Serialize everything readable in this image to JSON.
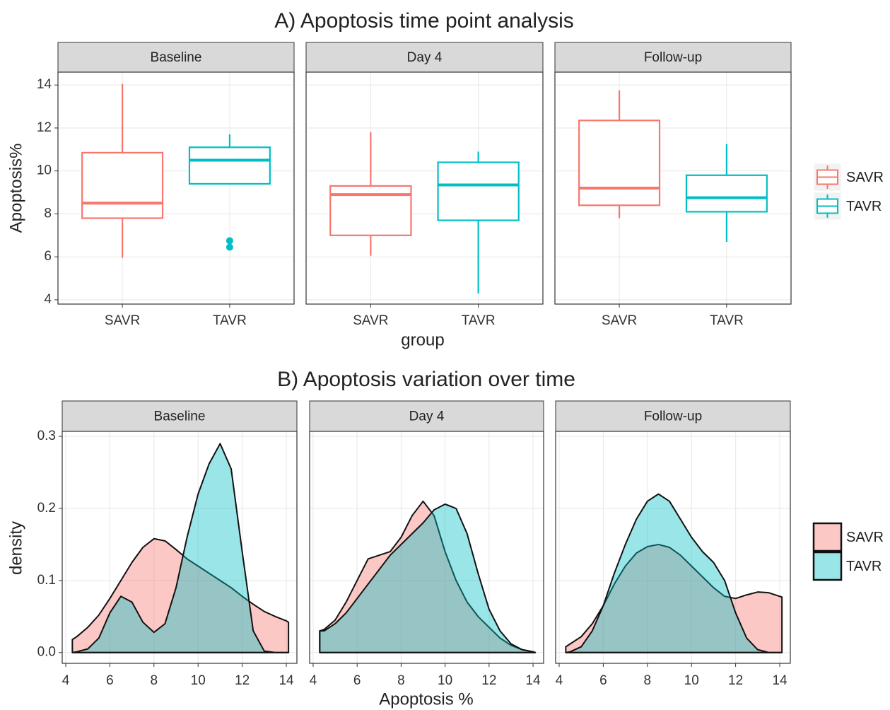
{
  "chart_data": [
    {
      "type": "box",
      "title": "A) Apoptosis time point analysis",
      "facets": [
        "Baseline",
        "Day 4",
        "Follow-up"
      ],
      "categories": [
        "SAVR",
        "TAVR"
      ],
      "x_label": "group",
      "y_label": "Apoptosis%",
      "ylim": [
        3.8,
        14.6
      ],
      "yticks": [
        4,
        6,
        8,
        10,
        12,
        14
      ],
      "grid": true,
      "legend": "right",
      "series": [
        {
          "name": "SAVR",
          "color": "#F8766D",
          "low": [
            5.95,
            6.05,
            7.8
          ],
          "q1": [
            7.8,
            7.0,
            8.4
          ],
          "median": [
            8.5,
            8.9,
            9.2
          ],
          "q3": [
            10.85,
            9.3,
            12.35
          ],
          "high": [
            14.05,
            11.8,
            13.75
          ]
        },
        {
          "name": "TAVR",
          "color": "#00BFC4",
          "low": [
            9.4,
            4.3,
            6.7
          ],
          "q1": [
            9.4,
            7.7,
            8.1
          ],
          "median": [
            10.5,
            9.35,
            8.75
          ],
          "q3": [
            11.1,
            10.4,
            9.8
          ],
          "high": [
            11.7,
            10.9,
            11.25
          ],
          "outliers": [
            [
              6.75,
              6.45
            ],
            [],
            []
          ]
        }
      ]
    },
    {
      "type": "density",
      "title": "B) Apoptosis variation over time",
      "facets": [
        "Baseline",
        "Day 4",
        "Follow-up"
      ],
      "x_label": "Apoptosis %",
      "y_label": "density",
      "x": [
        4.3,
        4.5,
        5,
        5.5,
        6,
        6.5,
        7,
        7.5,
        8,
        8.5,
        9,
        9.5,
        10,
        10.5,
        11,
        11.5,
        12,
        12.5,
        13,
        13.5,
        14,
        14.1
      ],
      "xlim": [
        3.84,
        14.48
      ],
      "xticks": [
        4,
        6,
        8,
        10,
        12,
        14
      ],
      "ylim": [
        -0.015,
        0.307
      ],
      "yticks": [
        {
          "value": 0,
          "label": "0.0"
        },
        0.1,
        0.2,
        0.3
      ],
      "grid": true,
      "legend": "right",
      "series": [
        {
          "name": "SAVR",
          "color": "#F8766D",
          "values": [
            [
              0.018,
              0.022,
              0.035,
              0.052,
              0.075,
              0.1,
              0.125,
              0.146,
              0.158,
              0.155,
              0.143,
              0.13,
              0.12,
              0.11,
              0.1,
              0.09,
              0.078,
              0.067,
              0.057,
              0.05,
              0.044,
              0.042
            ],
            [
              0.03,
              0.032,
              0.045,
              0.07,
              0.1,
              0.13,
              0.135,
              0.14,
              0.16,
              0.19,
              0.21,
              0.19,
              0.14,
              0.1,
              0.07,
              0.05,
              0.035,
              0.02,
              0.01,
              0.004,
              0.001,
              0
            ],
            [
              0.008,
              0.012,
              0.022,
              0.04,
              0.065,
              0.095,
              0.12,
              0.138,
              0.147,
              0.15,
              0.146,
              0.135,
              0.12,
              0.105,
              0.09,
              0.078,
              0.075,
              0.08,
              0.084,
              0.083,
              0.078,
              0.077
            ]
          ]
        },
        {
          "name": "TAVR",
          "color": "#00BFC4",
          "values": [
            [
              0,
              0.001,
              0.005,
              0.02,
              0.055,
              0.078,
              0.07,
              0.042,
              0.028,
              0.04,
              0.09,
              0.16,
              0.22,
              0.262,
              0.29,
              0.255,
              0.14,
              0.03,
              0.002,
              0,
              0,
              0
            ],
            [
              0.03,
              0.03,
              0.04,
              0.055,
              0.075,
              0.095,
              0.115,
              0.135,
              0.15,
              0.165,
              0.18,
              0.198,
              0.206,
              0.2,
              0.165,
              0.11,
              0.06,
              0.03,
              0.012,
              0.004,
              0.001,
              0
            ],
            [
              0,
              0.001,
              0.008,
              0.03,
              0.065,
              0.11,
              0.15,
              0.185,
              0.21,
              0.22,
              0.21,
              0.185,
              0.16,
              0.14,
              0.125,
              0.1,
              0.055,
              0.02,
              0.004,
              0,
              0,
              0
            ]
          ]
        }
      ]
    }
  ]
}
